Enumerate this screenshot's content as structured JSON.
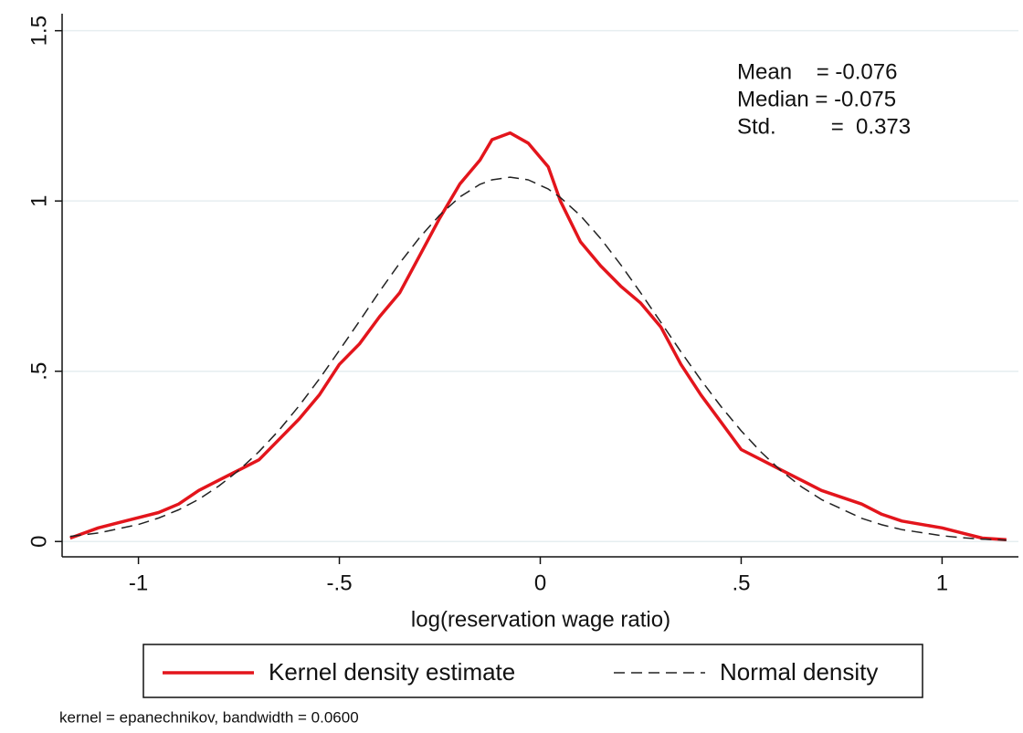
{
  "chart_data": {
    "type": "line",
    "xlabel": "log(reservation wage ratio)",
    "annotations": [
      "Mean    = -0.076",
      "Median = -0.075",
      "Std.         =  0.373"
    ],
    "note": "kernel = epanechnikov, bandwidth = 0.0600",
    "x": [
      -1.17,
      -1.1,
      -1.0,
      -0.95,
      -0.9,
      -0.85,
      -0.8,
      -0.75,
      -0.7,
      -0.65,
      -0.6,
      -0.55,
      -0.5,
      -0.45,
      -0.4,
      -0.35,
      -0.3,
      -0.25,
      -0.2,
      -0.15,
      -0.12,
      -0.075,
      -0.03,
      0.02,
      0.05,
      0.1,
      0.15,
      0.2,
      0.25,
      0.3,
      0.35,
      0.4,
      0.45,
      0.5,
      0.55,
      0.6,
      0.65,
      0.7,
      0.8,
      0.85,
      0.9,
      1.0,
      1.05,
      1.1,
      1.16
    ],
    "series": [
      {
        "name": "Kernel density estimate",
        "color": "#e3151c",
        "dash": false,
        "values": [
          0.01,
          0.04,
          0.07,
          0.085,
          0.11,
          0.15,
          0.18,
          0.21,
          0.24,
          0.3,
          0.36,
          0.43,
          0.52,
          0.58,
          0.66,
          0.73,
          0.84,
          0.95,
          1.05,
          1.12,
          1.18,
          1.2,
          1.17,
          1.1,
          1.0,
          0.88,
          0.81,
          0.75,
          0.7,
          0.63,
          0.52,
          0.43,
          0.35,
          0.27,
          0.24,
          0.21,
          0.18,
          0.15,
          0.11,
          0.08,
          0.06,
          0.04,
          0.025,
          0.01,
          0.005
        ]
      },
      {
        "name": "Normal density",
        "color": "#222222",
        "dash": true,
        "values": [
          0.015,
          0.025,
          0.05,
          0.069,
          0.093,
          0.124,
          0.163,
          0.209,
          0.264,
          0.327,
          0.399,
          0.477,
          0.561,
          0.647,
          0.734,
          0.817,
          0.893,
          0.959,
          1.012,
          1.049,
          1.062,
          1.07,
          1.062,
          1.035,
          1.01,
          0.957,
          0.89,
          0.813,
          0.73,
          0.644,
          0.557,
          0.474,
          0.396,
          0.325,
          0.262,
          0.207,
          0.161,
          0.123,
          0.068,
          0.049,
          0.035,
          0.017,
          0.011,
          0.007,
          0.004
        ]
      }
    ],
    "xlim": [
      -1.19,
      1.19
    ],
    "xticks": [
      -1,
      {
        "value": -0.5,
        "label": "-.5"
      },
      0,
      {
        "value": 0.5,
        "label": ".5"
      },
      1
    ],
    "ylim": [
      -0.045,
      1.55
    ],
    "yticks": [
      0,
      {
        "value": 0.5,
        "label": ".5"
      },
      1,
      1.5
    ],
    "grid": true,
    "legend": "bottom"
  }
}
